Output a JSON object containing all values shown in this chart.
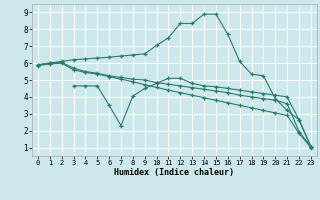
{
  "xlabel": "Humidex (Indice chaleur)",
  "bg_color": "#cce8ec",
  "line_color": "#2a7a6a",
  "grid_color": "#ffffff",
  "xlim": [
    -0.5,
    23.5
  ],
  "ylim": [
    0.5,
    9.5
  ],
  "xticks": [
    0,
    1,
    2,
    3,
    4,
    5,
    6,
    7,
    8,
    9,
    10,
    11,
    12,
    13,
    14,
    15,
    16,
    17,
    18,
    19,
    20,
    21,
    22,
    23
  ],
  "yticks": [
    1,
    2,
    3,
    4,
    5,
    6,
    7,
    8,
    9
  ],
  "line1_x": [
    0,
    1,
    2,
    3,
    4,
    5,
    6,
    7,
    8,
    9,
    10,
    11,
    12,
    13,
    14,
    15,
    16,
    17,
    18,
    19,
    20,
    21,
    22,
    23
  ],
  "line1_y": [
    5.9,
    6.0,
    6.05,
    5.7,
    5.5,
    5.4,
    5.25,
    5.15,
    5.05,
    5.0,
    4.85,
    4.75,
    4.65,
    4.55,
    4.45,
    4.35,
    4.25,
    4.1,
    4.0,
    3.9,
    3.8,
    3.6,
    1.95,
    1.05
  ],
  "line2_x": [
    0,
    1,
    2,
    3,
    4,
    5,
    6,
    7,
    8,
    9,
    10,
    11,
    12,
    13,
    14,
    15,
    16,
    17,
    18,
    19,
    20,
    21,
    22,
    23
  ],
  "line2_y": [
    5.85,
    5.95,
    6.0,
    5.6,
    5.45,
    5.35,
    5.2,
    5.05,
    4.9,
    4.72,
    4.56,
    4.4,
    4.25,
    4.1,
    3.95,
    3.8,
    3.65,
    3.5,
    3.35,
    3.2,
    3.05,
    2.9,
    1.85,
    1.0
  ],
  "line3_x": [
    0,
    1,
    2,
    3,
    4,
    5,
    6,
    7,
    8,
    9,
    10,
    11,
    12,
    13,
    14,
    15,
    16,
    17,
    18,
    19,
    20,
    21,
    22,
    23
  ],
  "line3_y": [
    5.9,
    6.0,
    6.1,
    6.2,
    6.25,
    6.3,
    6.35,
    6.42,
    6.48,
    6.55,
    7.05,
    7.5,
    8.35,
    8.35,
    8.9,
    8.9,
    7.7,
    6.1,
    5.35,
    5.25,
    3.9,
    3.2,
    2.65,
    1.05
  ],
  "line4_x": [
    3,
    4,
    5,
    6,
    7,
    8,
    9,
    10,
    11,
    12,
    13,
    14,
    15,
    16,
    17,
    18,
    19,
    20,
    21,
    22,
    23
  ],
  "line4_y": [
    4.65,
    4.65,
    4.65,
    3.5,
    2.3,
    4.05,
    4.5,
    4.8,
    5.1,
    5.1,
    4.8,
    4.65,
    4.6,
    4.5,
    4.4,
    4.3,
    4.2,
    4.1,
    4.0,
    2.65,
    1.05
  ]
}
